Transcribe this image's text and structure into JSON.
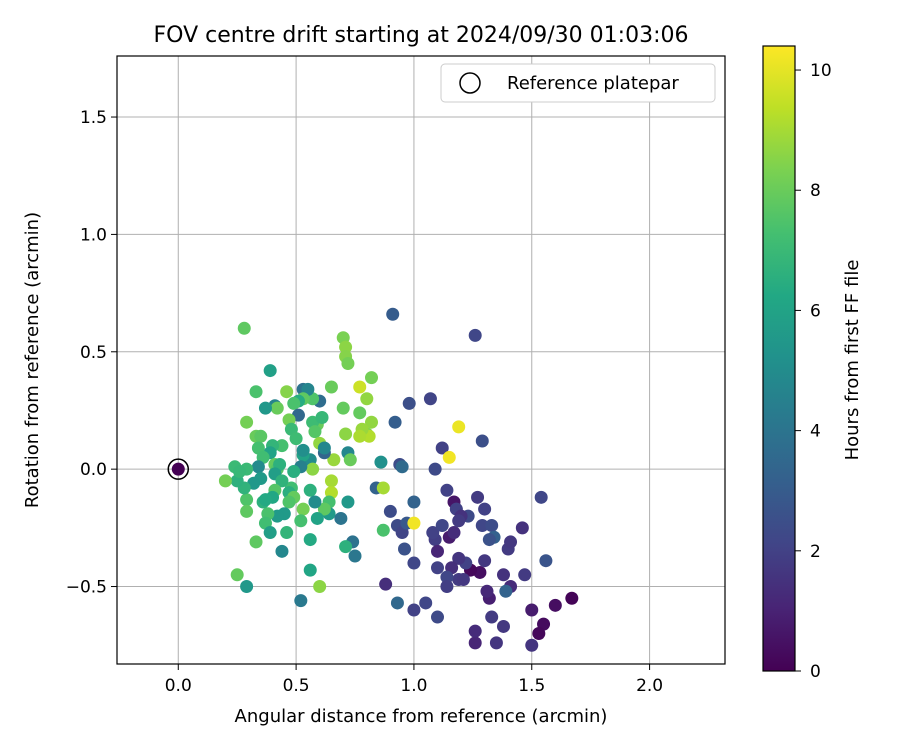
{
  "chart_data": {
    "type": "scatter",
    "title": "FOV centre drift starting at 2024/09/30 01:03:06",
    "xlabel": "Angular distance from reference (arcmin)",
    "ylabel": "Rotation from reference (arcmin)",
    "xlim": [
      -0.26,
      2.32
    ],
    "ylim": [
      -0.83,
      1.76
    ],
    "xticks": [
      "0.0",
      "0.5",
      "1.0",
      "1.5",
      "2.0"
    ],
    "xtick_values": [
      0,
      0.5,
      1.0,
      1.5,
      2.0
    ],
    "yticks": [
      "1.5",
      "1.0",
      "0.5",
      "0.0",
      "−0.5"
    ],
    "ytick_values": [
      1.5,
      1.0,
      0.5,
      0.0,
      -0.5
    ],
    "grid": true,
    "legend": {
      "position": "top-right",
      "label": "Reference platepar"
    },
    "reference_point": {
      "x": 0.0,
      "y": 0.0
    },
    "colorbar": {
      "label": "Hours from first FF file",
      "colormap": "viridis",
      "range": [
        0,
        10.4
      ],
      "ticks": [
        "0",
        "2",
        "4",
        "6",
        "8",
        "10"
      ],
      "tick_values": [
        0,
        2,
        4,
        6,
        8,
        10
      ]
    },
    "points": [
      {
        "x": 1.67,
        "y": -0.55,
        "h": 0.1
      },
      {
        "x": 1.6,
        "y": -0.58,
        "h": 0.4
      },
      {
        "x": 1.55,
        "y": -0.66,
        "h": 0.3
      },
      {
        "x": 1.53,
        "y": -0.7,
        "h": 0.2
      },
      {
        "x": 1.5,
        "y": -0.75,
        "h": 1.6
      },
      {
        "x": 1.5,
        "y": -0.6,
        "h": 0.8
      },
      {
        "x": 1.47,
        "y": -0.45,
        "h": 1.8
      },
      {
        "x": 1.41,
        "y": -0.5,
        "h": 1.3
      },
      {
        "x": 1.38,
        "y": -0.67,
        "h": 1.7
      },
      {
        "x": 1.33,
        "y": -0.63,
        "h": 1.8
      },
      {
        "x": 1.35,
        "y": -0.74,
        "h": 1.6
      },
      {
        "x": 1.26,
        "y": -0.74,
        "h": 1.1
      },
      {
        "x": 1.26,
        "y": -0.69,
        "h": 1.3
      },
      {
        "x": 1.32,
        "y": -0.55,
        "h": 0.9
      },
      {
        "x": 1.31,
        "y": -0.52,
        "h": 1.2
      },
      {
        "x": 1.28,
        "y": -0.44,
        "h": 0.4
      },
      {
        "x": 1.24,
        "y": -0.43,
        "h": 0.2
      },
      {
        "x": 1.3,
        "y": -0.39,
        "h": 1.7
      },
      {
        "x": 1.38,
        "y": -0.45,
        "h": 1.5
      },
      {
        "x": 1.4,
        "y": -0.34,
        "h": 1.8
      },
      {
        "x": 1.41,
        "y": -0.31,
        "h": 1.7
      },
      {
        "x": 1.46,
        "y": -0.25,
        "h": 1.5
      },
      {
        "x": 1.54,
        "y": -0.12,
        "h": 2.2
      },
      {
        "x": 1.56,
        "y": -0.39,
        "h": 2.7
      },
      {
        "x": 1.39,
        "y": -0.52,
        "h": 3.3
      },
      {
        "x": 1.29,
        "y": -0.24,
        "h": 2.2
      },
      {
        "x": 1.33,
        "y": -0.24,
        "h": 2.4
      },
      {
        "x": 1.34,
        "y": -0.29,
        "h": 3.2
      },
      {
        "x": 1.32,
        "y": -0.3,
        "h": 2.6
      },
      {
        "x": 1.3,
        "y": -0.17,
        "h": 2.0
      },
      {
        "x": 1.27,
        "y": -0.12,
        "h": 1.8
      },
      {
        "x": 1.23,
        "y": -0.2,
        "h": 2.3
      },
      {
        "x": 1.22,
        "y": -0.4,
        "h": 2.0
      },
      {
        "x": 1.19,
        "y": -0.38,
        "h": 1.6
      },
      {
        "x": 1.19,
        "y": -0.47,
        "h": 1.8
      },
      {
        "x": 1.21,
        "y": -0.47,
        "h": 1.7
      },
      {
        "x": 1.16,
        "y": -0.42,
        "h": 1.4
      },
      {
        "x": 1.14,
        "y": -0.46,
        "h": 2.2
      },
      {
        "x": 1.14,
        "y": -0.5,
        "h": 1.9
      },
      {
        "x": 1.1,
        "y": -0.42,
        "h": 2.0
      },
      {
        "x": 1.09,
        "y": -0.3,
        "h": 1.9
      },
      {
        "x": 1.08,
        "y": -0.27,
        "h": 2.0
      },
      {
        "x": 1.12,
        "y": -0.24,
        "h": 2.2
      },
      {
        "x": 1.1,
        "y": -0.35,
        "h": 1.1
      },
      {
        "x": 1.15,
        "y": -0.29,
        "h": 0.8
      },
      {
        "x": 1.17,
        "y": -0.27,
        "h": 1.3
      },
      {
        "x": 1.17,
        "y": -0.14,
        "h": 0.6
      },
      {
        "x": 1.18,
        "y": -0.17,
        "h": 2.0
      },
      {
        "x": 1.2,
        "y": -0.2,
        "h": 1.5
      },
      {
        "x": 1.19,
        "y": -0.22,
        "h": 1.8
      },
      {
        "x": 1.14,
        "y": -0.09,
        "h": 2.0
      },
      {
        "x": 1.12,
        "y": 0.09,
        "h": 2.0
      },
      {
        "x": 1.09,
        "y": 0.0,
        "h": 2.3
      },
      {
        "x": 1.07,
        "y": 0.3,
        "h": 2.1
      },
      {
        "x": 1.29,
        "y": 0.12,
        "h": 2.5
      },
      {
        "x": 1.26,
        "y": 0.57,
        "h": 2.2
      },
      {
        "x": 0.91,
        "y": 0.66,
        "h": 3.0
      },
      {
        "x": 0.92,
        "y": 0.2,
        "h": 3.1
      },
      {
        "x": 0.98,
        "y": 0.28,
        "h": 2.5
      },
      {
        "x": 0.94,
        "y": 0.02,
        "h": 2.4
      },
      {
        "x": 0.95,
        "y": 0.01,
        "h": 3.6
      },
      {
        "x": 1.0,
        "y": -0.14,
        "h": 3.3
      },
      {
        "x": 0.9,
        "y": -0.18,
        "h": 2.4
      },
      {
        "x": 0.93,
        "y": -0.24,
        "h": 2.3
      },
      {
        "x": 0.95,
        "y": -0.27,
        "h": 2.1
      },
      {
        "x": 0.96,
        "y": -0.34,
        "h": 2.6
      },
      {
        "x": 0.97,
        "y": -0.23,
        "h": 2.9
      },
      {
        "x": 1.0,
        "y": -0.4,
        "h": 2.2
      },
      {
        "x": 1.05,
        "y": -0.57,
        "h": 2.2
      },
      {
        "x": 1.0,
        "y": -0.6,
        "h": 2.0
      },
      {
        "x": 1.1,
        "y": -0.63,
        "h": 2.3
      },
      {
        "x": 0.88,
        "y": -0.49,
        "h": 1.4
      },
      {
        "x": 0.93,
        "y": -0.57,
        "h": 3.5
      },
      {
        "x": 1.0,
        "y": -0.23,
        "h": 10.2
      },
      {
        "x": 1.15,
        "y": 0.05,
        "h": 10.2
      },
      {
        "x": 1.19,
        "y": 0.18,
        "h": 10.1
      },
      {
        "x": 0.86,
        "y": 0.03,
        "h": 5.2
      },
      {
        "x": 0.84,
        "y": -0.08,
        "h": 3.3
      },
      {
        "x": 0.87,
        "y": -0.08,
        "h": 9.0
      },
      {
        "x": 0.87,
        "y": -0.26,
        "h": 7.4
      },
      {
        "x": 0.82,
        "y": 0.2,
        "h": 8.7
      },
      {
        "x": 0.8,
        "y": 0.15,
        "h": 8.4
      },
      {
        "x": 0.81,
        "y": 0.14,
        "h": 9.2
      },
      {
        "x": 0.78,
        "y": 0.17,
        "h": 8.8
      },
      {
        "x": 0.77,
        "y": 0.14,
        "h": 9.1
      },
      {
        "x": 0.77,
        "y": 0.24,
        "h": 7.9
      },
      {
        "x": 0.8,
        "y": 0.3,
        "h": 8.7
      },
      {
        "x": 0.82,
        "y": 0.39,
        "h": 8.2
      },
      {
        "x": 0.77,
        "y": 0.35,
        "h": 9.6
      },
      {
        "x": 0.7,
        "y": 0.56,
        "h": 8.3
      },
      {
        "x": 0.71,
        "y": 0.52,
        "h": 8.6
      },
      {
        "x": 0.71,
        "y": 0.48,
        "h": 8.5
      },
      {
        "x": 0.72,
        "y": 0.45,
        "h": 8.2
      },
      {
        "x": 0.7,
        "y": 0.26,
        "h": 7.9
      },
      {
        "x": 0.71,
        "y": 0.15,
        "h": 8.6
      },
      {
        "x": 0.72,
        "y": 0.07,
        "h": 4.8
      },
      {
        "x": 0.73,
        "y": 0.04,
        "h": 8.0
      },
      {
        "x": 0.66,
        "y": 0.04,
        "h": 8.8
      },
      {
        "x": 0.65,
        "y": -0.05,
        "h": 9.0
      },
      {
        "x": 0.65,
        "y": -0.1,
        "h": 9.2
      },
      {
        "x": 0.64,
        "y": -0.14,
        "h": 7.3
      },
      {
        "x": 0.64,
        "y": -0.19,
        "h": 5.6
      },
      {
        "x": 0.62,
        "y": -0.17,
        "h": 7.8
      },
      {
        "x": 0.69,
        "y": -0.21,
        "h": 4.0
      },
      {
        "x": 0.72,
        "y": -0.14,
        "h": 5.5
      },
      {
        "x": 0.74,
        "y": -0.31,
        "h": 3.9
      },
      {
        "x": 0.75,
        "y": -0.37,
        "h": 4.1
      },
      {
        "x": 0.71,
        "y": -0.33,
        "h": 6.6
      },
      {
        "x": 0.65,
        "y": 0.35,
        "h": 8.0
      },
      {
        "x": 0.6,
        "y": 0.29,
        "h": 3.7
      },
      {
        "x": 0.57,
        "y": 0.3,
        "h": 7.5
      },
      {
        "x": 0.59,
        "y": 0.19,
        "h": 8.0
      },
      {
        "x": 0.57,
        "y": 0.2,
        "h": 7.1
      },
      {
        "x": 0.58,
        "y": 0.16,
        "h": 7.6
      },
      {
        "x": 0.6,
        "y": 0.11,
        "h": 8.7
      },
      {
        "x": 0.62,
        "y": 0.07,
        "h": 3.4
      },
      {
        "x": 0.61,
        "y": 0.22,
        "h": 6.9
      },
      {
        "x": 0.62,
        "y": 0.09,
        "h": 4.8
      },
      {
        "x": 0.56,
        "y": 0.04,
        "h": 5.0
      },
      {
        "x": 0.57,
        "y": 0.0,
        "h": 8.6
      },
      {
        "x": 0.56,
        "y": -0.09,
        "h": 6.6
      },
      {
        "x": 0.58,
        "y": -0.14,
        "h": 5.0
      },
      {
        "x": 0.59,
        "y": -0.21,
        "h": 6.0
      },
      {
        "x": 0.56,
        "y": -0.3,
        "h": 6.3
      },
      {
        "x": 0.56,
        "y": -0.43,
        "h": 6.1
      },
      {
        "x": 0.6,
        "y": -0.5,
        "h": 8.6
      },
      {
        "x": 0.52,
        "y": -0.56,
        "h": 4.2
      },
      {
        "x": 0.53,
        "y": 0.34,
        "h": 3.9
      },
      {
        "x": 0.55,
        "y": 0.34,
        "h": 4.7
      },
      {
        "x": 0.53,
        "y": 0.3,
        "h": 7.8
      },
      {
        "x": 0.51,
        "y": 0.29,
        "h": 6.4
      },
      {
        "x": 0.49,
        "y": 0.28,
        "h": 7.4
      },
      {
        "x": 0.51,
        "y": 0.23,
        "h": 3.5
      },
      {
        "x": 0.47,
        "y": 0.21,
        "h": 8.2
      },
      {
        "x": 0.46,
        "y": 0.33,
        "h": 8.5
      },
      {
        "x": 0.48,
        "y": 0.17,
        "h": 7.0
      },
      {
        "x": 0.5,
        "y": 0.13,
        "h": 7.1
      },
      {
        "x": 0.53,
        "y": 0.06,
        "h": 6.0
      },
      {
        "x": 0.53,
        "y": 0.08,
        "h": 5.1
      },
      {
        "x": 0.52,
        "y": 0.01,
        "h": 4.5
      },
      {
        "x": 0.49,
        "y": -0.01,
        "h": 6.5
      },
      {
        "x": 0.48,
        "y": -0.08,
        "h": 7.2
      },
      {
        "x": 0.47,
        "y": -0.1,
        "h": 6.5
      },
      {
        "x": 0.49,
        "y": -0.12,
        "h": 7.9
      },
      {
        "x": 0.47,
        "y": -0.14,
        "h": 7.5
      },
      {
        "x": 0.53,
        "y": -0.17,
        "h": 8.2
      },
      {
        "x": 0.52,
        "y": -0.22,
        "h": 7.3
      },
      {
        "x": 0.46,
        "y": -0.27,
        "h": 6.8
      },
      {
        "x": 0.44,
        "y": -0.35,
        "h": 4.8
      },
      {
        "x": 0.45,
        "y": -0.19,
        "h": 5.6
      },
      {
        "x": 0.41,
        "y": 0.27,
        "h": 4.6
      },
      {
        "x": 0.42,
        "y": 0.26,
        "h": 8.0
      },
      {
        "x": 0.39,
        "y": 0.42,
        "h": 5.9
      },
      {
        "x": 0.37,
        "y": 0.26,
        "h": 5.5
      },
      {
        "x": 0.44,
        "y": 0.1,
        "h": 7.3
      },
      {
        "x": 0.4,
        "y": 0.1,
        "h": 6.8
      },
      {
        "x": 0.39,
        "y": 0.07,
        "h": 6.0
      },
      {
        "x": 0.41,
        "y": 0.02,
        "h": 7.9
      },
      {
        "x": 0.42,
        "y": 0.0,
        "h": 7.6
      },
      {
        "x": 0.43,
        "y": 0.02,
        "h": 6.6
      },
      {
        "x": 0.41,
        "y": -0.02,
        "h": 5.8
      },
      {
        "x": 0.44,
        "y": -0.05,
        "h": 6.7
      },
      {
        "x": 0.41,
        "y": -0.09,
        "h": 7.6
      },
      {
        "x": 0.4,
        "y": -0.12,
        "h": 6.2
      },
      {
        "x": 0.42,
        "y": -0.2,
        "h": 5.6
      },
      {
        "x": 0.38,
        "y": -0.19,
        "h": 7.4
      },
      {
        "x": 0.37,
        "y": -0.23,
        "h": 7.2
      },
      {
        "x": 0.39,
        "y": -0.27,
        "h": 5.8
      },
      {
        "x": 0.33,
        "y": 0.33,
        "h": 7.4
      },
      {
        "x": 0.33,
        "y": 0.14,
        "h": 8.0
      },
      {
        "x": 0.35,
        "y": 0.14,
        "h": 7.7
      },
      {
        "x": 0.34,
        "y": 0.09,
        "h": 7.3
      },
      {
        "x": 0.36,
        "y": 0.05,
        "h": 7.2
      },
      {
        "x": 0.34,
        "y": 0.01,
        "h": 4.9
      },
      {
        "x": 0.35,
        "y": -0.04,
        "h": 5.6
      },
      {
        "x": 0.32,
        "y": -0.06,
        "h": 5.5
      },
      {
        "x": 0.36,
        "y": -0.14,
        "h": 6.6
      },
      {
        "x": 0.37,
        "y": -0.13,
        "h": 6.3
      },
      {
        "x": 0.33,
        "y": -0.31,
        "h": 7.8
      },
      {
        "x": 0.29,
        "y": 0.2,
        "h": 8.2
      },
      {
        "x": 0.28,
        "y": 0.6,
        "h": 7.8
      },
      {
        "x": 0.29,
        "y": 0.0,
        "h": 7.0
      },
      {
        "x": 0.29,
        "y": -0.13,
        "h": 7.5
      },
      {
        "x": 0.29,
        "y": -0.18,
        "h": 7.8
      },
      {
        "x": 0.28,
        "y": -0.08,
        "h": 6.7
      },
      {
        "x": 0.25,
        "y": -0.05,
        "h": 6.6
      },
      {
        "x": 0.24,
        "y": 0.01,
        "h": 7.0
      },
      {
        "x": 0.26,
        "y": -0.01,
        "h": 6.9
      },
      {
        "x": 0.2,
        "y": -0.05,
        "h": 8.2
      },
      {
        "x": 0.25,
        "y": -0.45,
        "h": 7.9
      },
      {
        "x": 0.29,
        "y": -0.5,
        "h": 5.5
      }
    ]
  }
}
